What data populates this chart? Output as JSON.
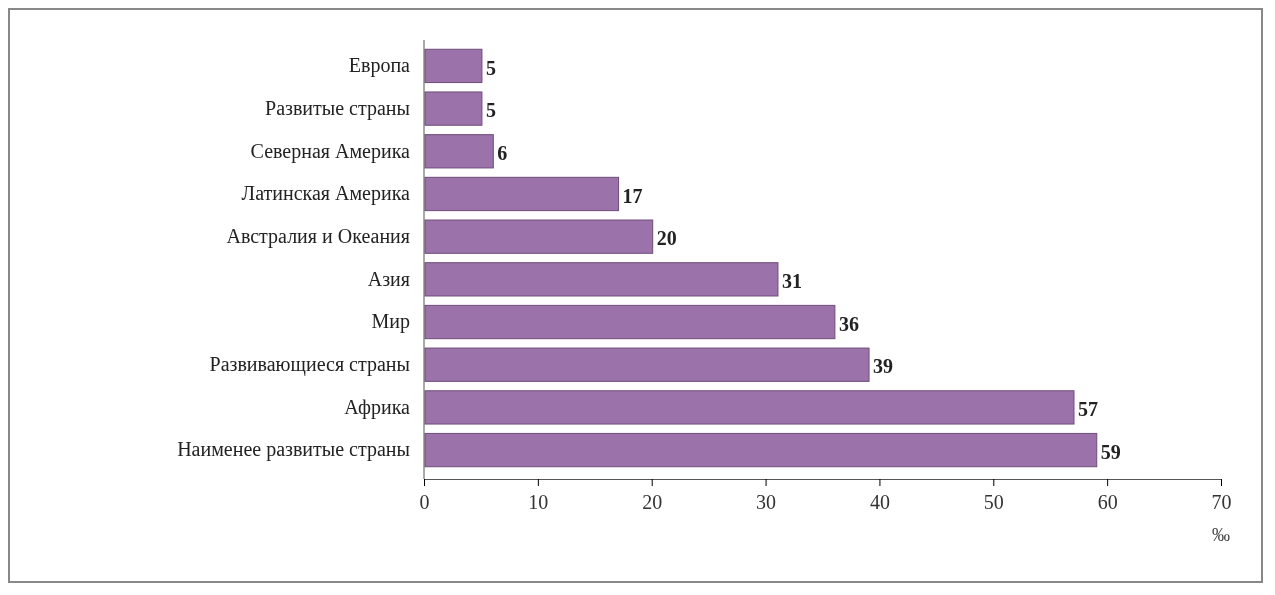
{
  "chart_data": {
    "type": "bar",
    "orientation": "horizontal",
    "categories": [
      "Европа",
      "Развитые страны",
      "Северная Америка",
      "Латинская Америка",
      "Австралия и Океания",
      "Азия",
      "Мир",
      "Развивающиеся страны",
      "Африка",
      "Наименее развитые страны"
    ],
    "values": [
      5,
      5,
      6,
      17,
      20,
      31,
      36,
      39,
      57,
      59
    ],
    "color": "#9b72a9",
    "xlim": [
      0,
      70
    ],
    "xticks": [
      0,
      10,
      20,
      30,
      40,
      50,
      60,
      70
    ],
    "xlabel": "‰",
    "data_labels": true
  }
}
